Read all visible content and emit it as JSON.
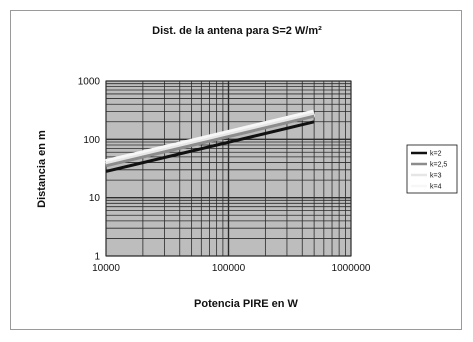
{
  "chart_data": {
    "type": "line",
    "title": "Dist. de la antena para S=2 W/m²",
    "xlabel": "Potencia PIRE en W",
    "ylabel": "Distancia en m",
    "x_scale": "log",
    "y_scale": "log",
    "xlim": [
      10000,
      1000000
    ],
    "ylim": [
      1,
      1000
    ],
    "x_ticks": [
      "10000",
      "100000",
      "1000000"
    ],
    "y_ticks": [
      "1",
      "10",
      "100",
      "1000"
    ],
    "grid": true,
    "legend_position": "right",
    "series": [
      {
        "name": "k=2",
        "color": "#111111",
        "x": [
          10000,
          500000
        ],
        "y": [
          28.2,
          199.5
        ]
      },
      {
        "name": "k=2,5",
        "color": "#8c8c8c",
        "x": [
          10000,
          500000
        ],
        "y": [
          35.2,
          249.3
        ]
      },
      {
        "name": "k=3",
        "color": "#e6e6e6",
        "x": [
          10000,
          500000
        ],
        "y": [
          37.0,
          262.0
        ]
      },
      {
        "name": "k=4",
        "color": "#f7f7f7",
        "x": [
          10000,
          500000
        ],
        "y": [
          39.9,
          282.1
        ]
      }
    ]
  },
  "colors": {
    "plot_background": "#bdbdbd",
    "gridline": "#2a2a2a",
    "frame_border": "#9a9a9a"
  }
}
